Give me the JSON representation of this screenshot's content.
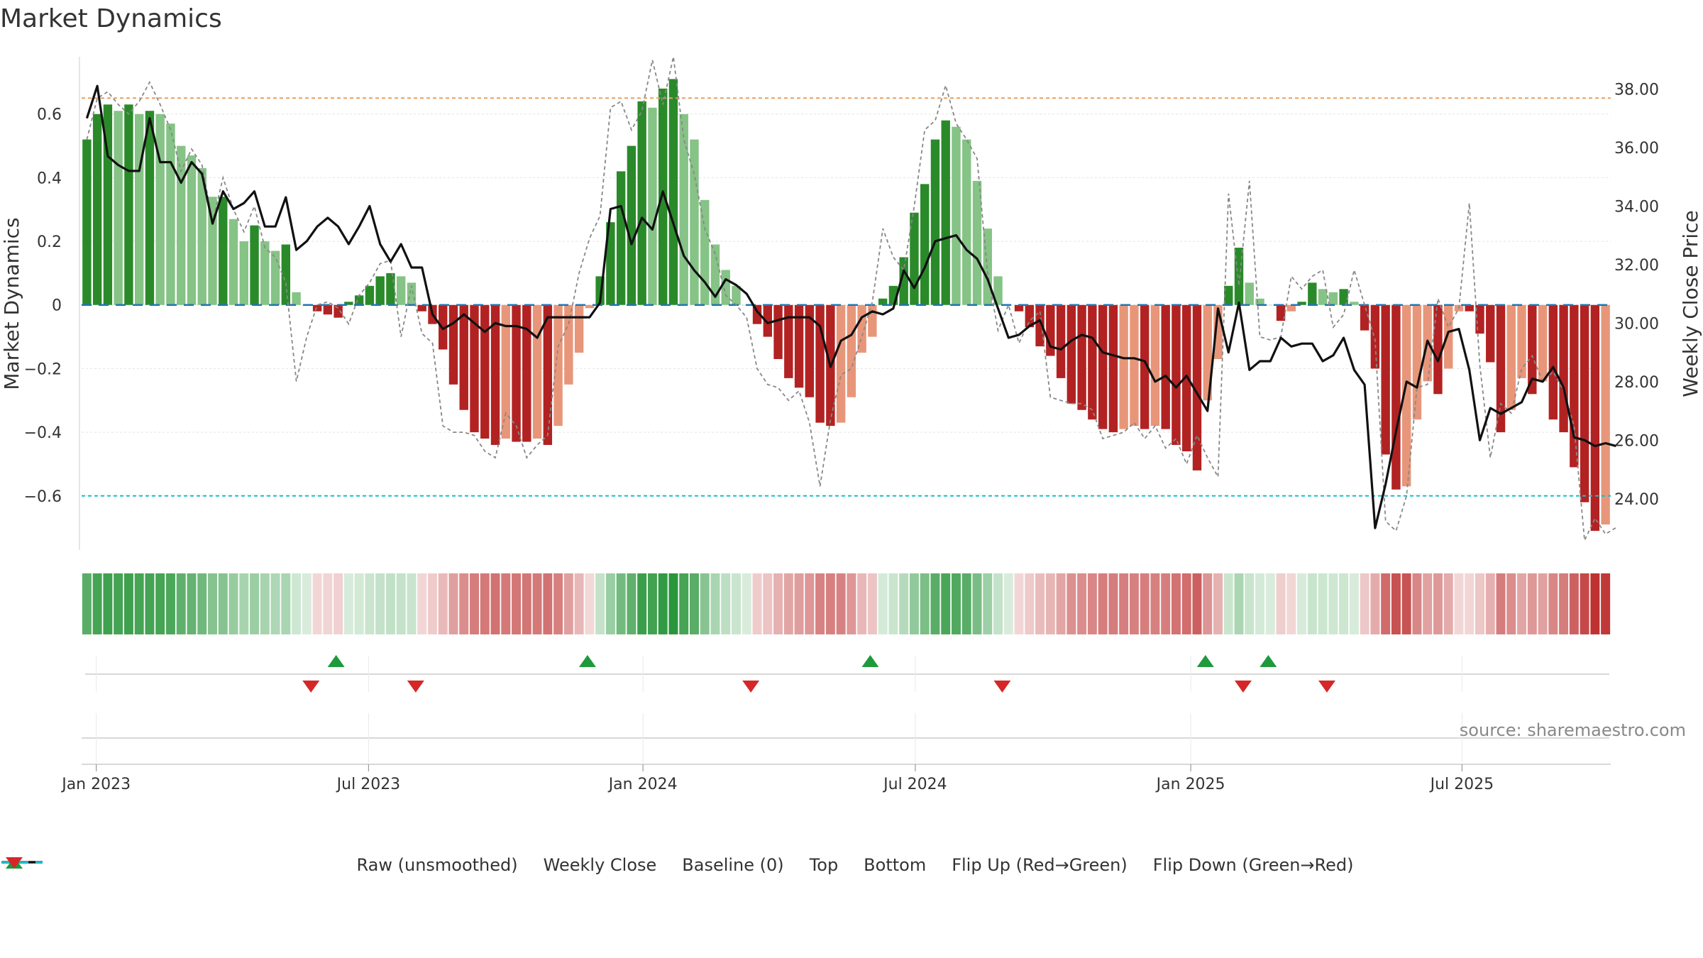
{
  "title": "Market Dynamics",
  "source": "source: sharemaestro.com",
  "chart_data": {
    "type": "bar",
    "x_start": "2022-12-26",
    "x_step_days": 7,
    "ylabel_left": "Market Dynamics",
    "ylabel_right": "Weekly Close Price",
    "ylim_left": [
      -0.77,
      0.78
    ],
    "ylim_right": [
      22.25,
      39.1
    ],
    "left_ticks": [
      0.6,
      0.4,
      0.2,
      0,
      -0.2,
      -0.4,
      -0.6
    ],
    "left_tick_labels": [
      "0.6",
      "0.4",
      "0.2",
      "0",
      "−0.2",
      "−0.4",
      "−0.6"
    ],
    "right_ticks": [
      38,
      36,
      34,
      32,
      30,
      28,
      26,
      24
    ],
    "right_tick_labels": [
      "38.00",
      "36.00",
      "34.00",
      "32.00",
      "30.00",
      "28.00",
      "26.00",
      "24.00"
    ],
    "x_ticks": [
      {
        "label": "Jan 2023",
        "week": 0.9
      },
      {
        "label": "Jul 2023",
        "week": 26.9
      },
      {
        "label": "Jan 2024",
        "week": 53.1
      },
      {
        "label": "Jul 2024",
        "week": 79.1
      },
      {
        "label": "Jan 2025",
        "week": 105.4
      },
      {
        "label": "Jul 2025",
        "week": 131.3
      }
    ],
    "top_line": 0.65,
    "bottom_line": -0.6,
    "bars": [
      0.52,
      0.6,
      0.63,
      0.61,
      0.63,
      0.6,
      0.61,
      0.6,
      0.57,
      0.5,
      0.47,
      0.43,
      0.34,
      0.34,
      0.27,
      0.2,
      0.25,
      0.2,
      0.17,
      0.19,
      0.04,
      0.0,
      -0.02,
      -0.03,
      -0.04,
      0.01,
      0.03,
      0.06,
      0.09,
      0.1,
      0.09,
      0.07,
      -0.02,
      -0.06,
      -0.14,
      -0.25,
      -0.33,
      -0.4,
      -0.42,
      -0.44,
      -0.42,
      -0.43,
      -0.43,
      -0.42,
      -0.44,
      -0.38,
      -0.25,
      -0.15,
      -0.01,
      0.09,
      0.26,
      0.42,
      0.5,
      0.64,
      0.62,
      0.68,
      0.71,
      0.6,
      0.52,
      0.33,
      0.19,
      0.11,
      0.06,
      0.0,
      -0.06,
      -0.1,
      -0.17,
      -0.23,
      -0.26,
      -0.29,
      -0.37,
      -0.38,
      -0.37,
      -0.29,
      -0.15,
      -0.1,
      0.02,
      0.06,
      0.15,
      0.29,
      0.38,
      0.52,
      0.58,
      0.56,
      0.52,
      0.39,
      0.24,
      0.09,
      0.0,
      -0.02,
      -0.07,
      -0.13,
      -0.16,
      -0.23,
      -0.31,
      -0.33,
      -0.36,
      -0.39,
      -0.4,
      -0.39,
      -0.38,
      -0.39,
      -0.38,
      -0.39,
      -0.44,
      -0.46,
      -0.52,
      -0.3,
      -0.17,
      0.06,
      0.18,
      0.07,
      0.02,
      0.0,
      -0.05,
      -0.02,
      0.01,
      0.07,
      0.05,
      0.04,
      0.05,
      0.01,
      -0.08,
      -0.2,
      -0.47,
      -0.58,
      -0.57,
      -0.36,
      -0.24,
      -0.28,
      -0.2,
      -0.02,
      -0.02,
      -0.09,
      -0.18,
      -0.4,
      -0.33,
      -0.23,
      -0.28,
      -0.24,
      -0.36,
      -0.4,
      -0.51,
      -0.62,
      -0.71,
      -0.69
    ],
    "bar_colors": {
      "strong_up": "#2a8a2a",
      "weak_up": "#86c386",
      "strong_down": "#b22222",
      "weak_down": "#e8967a"
    },
    "weekly_close": [
      37.0,
      38.1,
      35.7,
      35.4,
      35.2,
      35.2,
      37.0,
      35.5,
      35.5,
      34.8,
      35.5,
      35.1,
      33.4,
      34.5,
      33.9,
      34.1,
      34.5,
      33.3,
      33.3,
      34.3,
      32.5,
      32.8,
      33.3,
      33.6,
      33.3,
      32.7,
      33.3,
      34.0,
      32.7,
      32.1,
      32.7,
      31.9,
      31.9,
      30.3,
      29.8,
      30.0,
      30.3,
      30.0,
      29.7,
      30.0,
      29.9,
      29.9,
      29.8,
      29.5,
      30.2,
      30.2,
      30.2,
      30.2,
      30.2,
      30.7,
      33.9,
      34.0,
      32.7,
      33.6,
      33.2,
      34.5,
      33.4,
      32.3,
      31.8,
      31.4,
      30.9,
      31.5,
      31.3,
      31.0,
      30.4,
      30.0,
      30.1,
      30.2,
      30.2,
      30.2,
      29.9,
      28.5,
      29.4,
      29.6,
      30.2,
      30.4,
      30.3,
      30.5,
      31.8,
      31.2,
      31.9,
      32.8,
      32.9,
      33.0,
      32.5,
      32.2,
      31.5,
      30.5,
      29.5,
      29.6,
      29.9,
      30.1,
      29.2,
      29.1,
      29.4,
      29.6,
      29.5,
      29.0,
      28.9,
      28.8,
      28.8,
      28.7,
      28.0,
      28.2,
      27.8,
      28.2,
      27.6,
      27.0,
      30.5,
      29.0,
      30.7,
      28.4,
      28.7,
      28.7,
      29.5,
      29.2,
      29.3,
      29.3,
      28.7,
      28.9,
      29.5,
      28.4,
      27.9,
      23.0,
      24.5,
      26.3,
      28.0,
      27.8,
      29.4,
      28.7,
      29.7,
      29.8,
      28.4,
      26.0,
      27.1,
      26.9,
      27.1,
      27.3,
      28.1,
      28.0,
      28.5,
      27.8,
      26.1,
      26.0,
      25.8,
      25.9,
      25.8
    ],
    "raw": [
      0.52,
      0.65,
      0.67,
      0.63,
      0.6,
      0.64,
      0.7,
      0.63,
      0.55,
      0.42,
      0.49,
      0.44,
      0.26,
      0.4,
      0.3,
      0.23,
      0.31,
      0.18,
      0.15,
      0.07,
      -0.24,
      -0.1,
      0.0,
      0.01,
      -0.01,
      -0.06,
      0.03,
      0.07,
      0.13,
      0.14,
      -0.1,
      0.06,
      -0.09,
      -0.12,
      -0.38,
      -0.4,
      -0.4,
      -0.41,
      -0.46,
      -0.48,
      -0.34,
      -0.38,
      -0.48,
      -0.44,
      -0.41,
      -0.13,
      -0.06,
      0.1,
      0.21,
      0.28,
      0.62,
      0.64,
      0.55,
      0.61,
      0.77,
      0.63,
      0.78,
      0.52,
      0.41,
      0.24,
      0.16,
      0.03,
      0.0,
      -0.04,
      -0.2,
      -0.25,
      -0.26,
      -0.3,
      -0.27,
      -0.37,
      -0.57,
      -0.36,
      -0.22,
      -0.2,
      -0.1,
      0.01,
      0.24,
      0.15,
      0.11,
      0.31,
      0.55,
      0.58,
      0.69,
      0.57,
      0.52,
      0.46,
      0.1,
      -0.08,
      0.0,
      -0.12,
      -0.05,
      -0.02,
      -0.29,
      -0.3,
      -0.31,
      -0.31,
      -0.33,
      -0.42,
      -0.41,
      -0.4,
      -0.37,
      -0.42,
      -0.38,
      -0.45,
      -0.42,
      -0.5,
      -0.41,
      -0.48,
      -0.54,
      0.35,
      0.06,
      0.39,
      -0.1,
      -0.11,
      -0.1,
      0.09,
      0.05,
      0.09,
      0.11,
      -0.07,
      -0.03,
      0.11,
      0.0,
      -0.11,
      -0.68,
      -0.71,
      -0.6,
      -0.26,
      -0.25,
      0.02,
      -0.07,
      -0.01,
      0.32,
      -0.19,
      -0.48,
      -0.31,
      -0.34,
      -0.2,
      -0.16,
      -0.24,
      -0.21,
      -0.27,
      -0.38,
      -0.74,
      -0.67,
      -0.72,
      -0.7
    ],
    "flip_up_weeks": [
      23.8,
      47.8,
      74.8,
      106.8,
      112.8
    ],
    "flip_down_weeks": [
      21.4,
      31.4,
      63.4,
      87.4,
      110.4,
      118.4
    ],
    "legend": [
      {
        "label": "Raw (unsmoothed)",
        "kind": "dotted",
        "color": "#888888"
      },
      {
        "label": "Weekly Close",
        "kind": "solid",
        "color": "#111111"
      },
      {
        "label": "Baseline (0)",
        "kind": "dashed",
        "color": "#1f77b4"
      },
      {
        "label": "Top",
        "kind": "dashed",
        "color": "#e8a060"
      },
      {
        "label": "Bottom",
        "kind": "dashed",
        "color": "#17becf"
      },
      {
        "label": "Flip Up (Red→Green)",
        "kind": "tri-up",
        "color": "#1e9a3c"
      },
      {
        "label": "Flip Down (Green→Red)",
        "kind": "tri-down",
        "color": "#d62728"
      }
    ]
  }
}
